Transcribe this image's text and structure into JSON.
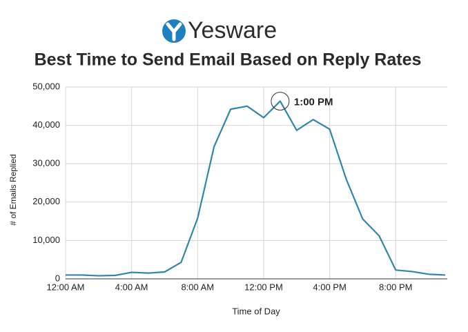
{
  "header": {
    "brand": "Yesware"
  },
  "chart_data": {
    "type": "line",
    "title": "Best Time to Send Email Based on Reply Rates",
    "x_label": "Time of Day",
    "y_label": "# of Emails Replied",
    "x": [
      0,
      1,
      2,
      3,
      4,
      5,
      6,
      7,
      8,
      9,
      10,
      11,
      12,
      13,
      14,
      15,
      16,
      17,
      18,
      19,
      20,
      21,
      22,
      23
    ],
    "series": [
      {
        "name": "Emails Replied",
        "color": "#2e86ae",
        "values": [
          1000,
          1000,
          800,
          900,
          1700,
          1500,
          1800,
          4300,
          15800,
          34500,
          44200,
          45000,
          42000,
          46300,
          38700,
          41500,
          39000,
          26000,
          15600,
          11200,
          2300,
          1900,
          1200,
          1000
        ]
      }
    ],
    "xlim": [
      0,
      23
    ],
    "ylim": [
      0,
      50000
    ],
    "xticks": [
      {
        "value": 0,
        "label": "12:00 AM"
      },
      {
        "value": 4,
        "label": "4:00 AM"
      },
      {
        "value": 8,
        "label": "8:00 AM"
      },
      {
        "value": 12,
        "label": "12:00 PM"
      },
      {
        "value": 16,
        "label": "4:00 PM"
      },
      {
        "value": 20,
        "label": "8:00 PM"
      }
    ],
    "yticks": [
      0,
      {
        "value": 10000,
        "label": "10,000"
      },
      {
        "value": 20000,
        "label": "20,000"
      },
      {
        "value": 30000,
        "label": "30,000"
      },
      {
        "value": 40000,
        "label": "40,000"
      },
      {
        "value": 50000,
        "label": "50,000"
      }
    ],
    "grid": true,
    "annotation": {
      "label": "1:00 PM",
      "x": 13
    }
  }
}
